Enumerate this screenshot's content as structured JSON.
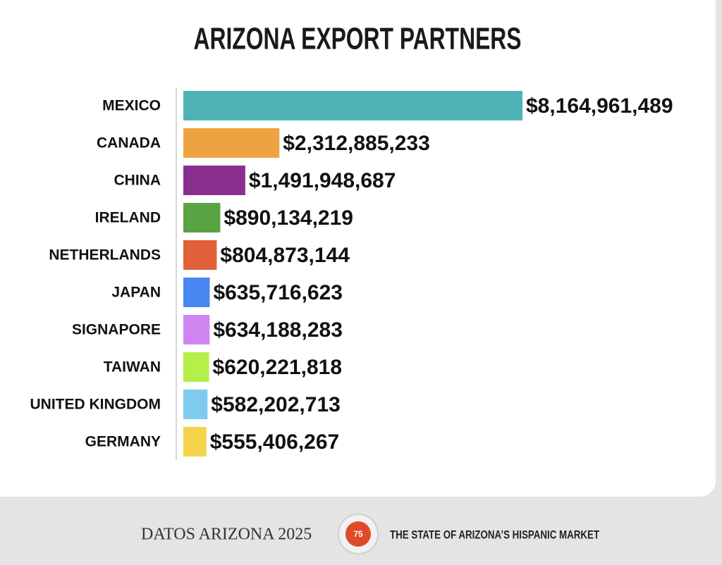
{
  "chart_data": {
    "type": "bar",
    "orientation": "horizontal",
    "title": "ARIZONA EXPORT PARTNERS",
    "categories": [
      "MEXICO",
      "CANADA",
      "CHINA",
      "IRELAND",
      "NETHERLANDS",
      "JAPAN",
      "SIGNAPORE",
      "TAIWAN",
      "UNITED KINGDOM",
      "GERMANY"
    ],
    "values": [
      8164961489,
      2312885233,
      1491948687,
      890134219,
      804873144,
      635716623,
      634188283,
      620221818,
      582202713,
      555406267
    ],
    "value_labels": [
      "$8,164,961,489",
      "$2,312,885,233",
      "$1,491,948,687",
      "$890,134,219",
      "$804,873,144",
      "$635,716,623",
      "$634,188,283",
      "$620,221,818",
      "$582,202,713",
      "$555,406,267"
    ],
    "colors": [
      "#4fb3b5",
      "#eda440",
      "#8b2f8f",
      "#5aa342",
      "#e0603a",
      "#4a86f0",
      "#cf86f0",
      "#b4ef4a",
      "#7fcbef",
      "#f5d34a"
    ]
  },
  "footer": {
    "brand": "DATOS ARIZONA 2025",
    "page_number": "75",
    "publication": "THE STATE OF ARIZONA’S HISPANIC MARKET"
  }
}
